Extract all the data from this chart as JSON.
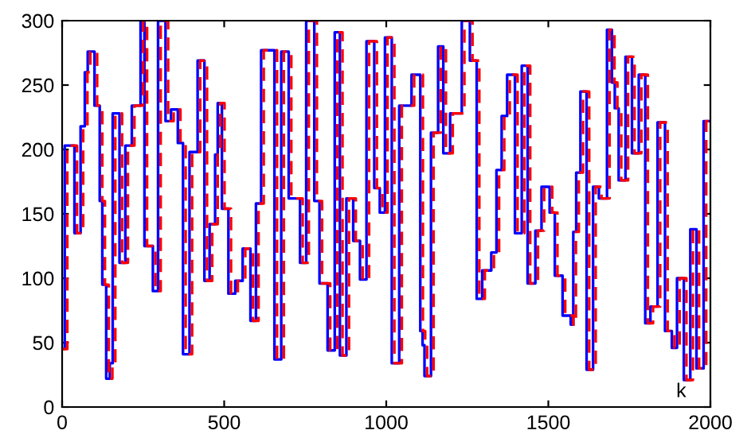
{
  "chart_data": {
    "type": "step",
    "xlim": [
      0,
      2000
    ],
    "xticks": [
      0,
      500,
      1000,
      1500,
      2000
    ],
    "ylim": [
      0,
      300
    ],
    "yticks": [
      0,
      50,
      100,
      150,
      200,
      250,
      300
    ],
    "grid": false,
    "legend": false,
    "annotations": [
      "k"
    ],
    "series": [
      {
        "color": "#0000ff",
        "line_style": "solid",
        "x": [
          0,
          8,
          38,
          57,
          70,
          79,
          100,
          116,
          124,
          136,
          147,
          156,
          177,
          195,
          215,
          242,
          254,
          280,
          296,
          319,
          336,
          357,
          373,
          393,
          418,
          439,
          455,
          472,
          480,
          493,
          513,
          534,
          557,
          581,
          598,
          614,
          655,
          676,
          699,
          734,
          753,
          778,
          794,
          819,
          841,
          857,
          877,
          898,
          919,
          939,
          963,
          980,
          996,
          1017,
          1040,
          1078,
          1105,
          1112,
          1118,
          1138,
          1160,
          1176,
          1197,
          1233,
          1258,
          1279,
          1296,
          1324,
          1340,
          1356,
          1373,
          1397,
          1418,
          1436,
          1460,
          1479,
          1504,
          1520,
          1544,
          1569,
          1577,
          1586,
          1599,
          1618,
          1638,
          1656,
          1681,
          1696,
          1705,
          1717,
          1738,
          1758,
          1779,
          1799,
          1815,
          1837,
          1860,
          1881,
          1897,
          1918,
          1938,
          1957,
          1979,
          2000
        ],
        "values": [
          45,
          203,
          135,
          218,
          260,
          276,
          234,
          160,
          95,
          22,
          34,
          228,
          112,
          203,
          234,
          300,
          125,
          90,
          300,
          222,
          231,
          205,
          41,
          198,
          269,
          98,
          142,
          196,
          236,
          154,
          88,
          98,
          123,
          67,
          158,
          277,
          37,
          276,
          162,
          112,
          300,
          160,
          96,
          44,
          291,
          40,
          162,
          129,
          99,
          284,
          170,
          151,
          287,
          34,
          234,
          258,
          59,
          48,
          24,
          213,
          280,
          197,
          228,
          300,
          269,
          84,
          106,
          120,
          184,
          226,
          258,
          135,
          265,
          96,
          137,
          171,
          151,
          102,
          71,
          64,
          136,
          182,
          245,
          29,
          171,
          162,
          293,
          252,
          232,
          176,
          272,
          197,
          258,
          65,
          78,
          221,
          59,
          46,
          100,
          21,
          138,
          30,
          222,
          222
        ]
      },
      {
        "color": "#ff0000",
        "line_style": "dashed",
        "x": [
          0,
          16,
          46,
          65,
          78,
          87,
          108,
          124,
          132,
          144,
          155,
          164,
          185,
          203,
          223,
          250,
          262,
          288,
          304,
          327,
          344,
          365,
          381,
          401,
          426,
          447,
          463,
          480,
          488,
          501,
          521,
          542,
          565,
          589,
          606,
          622,
          663,
          684,
          707,
          742,
          761,
          786,
          802,
          827,
          849,
          865,
          885,
          906,
          927,
          947,
          971,
          988,
          1004,
          1025,
          1048,
          1086,
          1113,
          1120,
          1126,
          1146,
          1168,
          1184,
          1205,
          1241,
          1266,
          1287,
          1304,
          1332,
          1348,
          1364,
          1381,
          1405,
          1426,
          1444,
          1468,
          1487,
          1512,
          1528,
          1552,
          1577,
          1585,
          1594,
          1607,
          1626,
          1646,
          1664,
          1689,
          1704,
          1713,
          1725,
          1746,
          1766,
          1787,
          1807,
          1823,
          1845,
          1868,
          1889,
          1905,
          1926,
          1946,
          1965,
          1987,
          2000
        ],
        "values": [
          45,
          203,
          135,
          218,
          260,
          276,
          234,
          160,
          95,
          22,
          34,
          228,
          112,
          203,
          234,
          300,
          125,
          90,
          300,
          222,
          231,
          205,
          41,
          198,
          269,
          98,
          142,
          196,
          236,
          154,
          88,
          98,
          123,
          67,
          158,
          277,
          37,
          276,
          162,
          112,
          300,
          160,
          96,
          44,
          291,
          40,
          162,
          129,
          99,
          284,
          170,
          151,
          287,
          34,
          234,
          258,
          59,
          48,
          24,
          213,
          280,
          197,
          228,
          300,
          269,
          84,
          106,
          120,
          184,
          226,
          258,
          135,
          265,
          96,
          137,
          171,
          151,
          102,
          71,
          64,
          136,
          182,
          245,
          29,
          171,
          162,
          293,
          252,
          232,
          176,
          272,
          197,
          258,
          65,
          78,
          221,
          59,
          46,
          100,
          21,
          138,
          30,
          222,
          222
        ]
      }
    ]
  }
}
